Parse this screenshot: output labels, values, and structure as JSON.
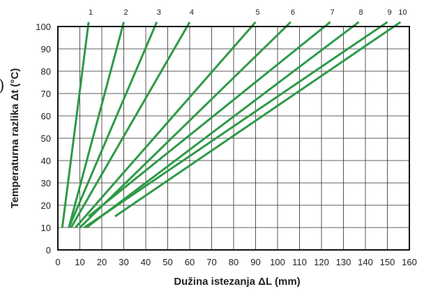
{
  "chart_data": {
    "type": "line",
    "xlabel": "Dužina istezanja ΔL (mm)",
    "ylabel": "Temperaturna razlika Δt  (°C)",
    "xlim": [
      0,
      160
    ],
    "ylim": [
      0,
      100
    ],
    "x_ticks": [
      "0",
      "10",
      "20",
      "30",
      "40",
      "50",
      "60",
      "70",
      "80",
      "90",
      "100",
      "110",
      "120",
      "130",
      "140",
      "150",
      "160"
    ],
    "y_ticks": [
      "0",
      "10",
      "20",
      "30",
      "40",
      "50",
      "60",
      "70",
      "80",
      "90",
      "100"
    ],
    "grid": true,
    "series": [
      {
        "name": "1",
        "x": [
          2,
          14
        ],
        "y": [
          10,
          102
        ]
      },
      {
        "name": "2",
        "x": [
          5,
          30
        ],
        "y": [
          10,
          102
        ]
      },
      {
        "name": "3",
        "x": [
          5,
          45
        ],
        "y": [
          10,
          102
        ]
      },
      {
        "name": "4",
        "x": [
          6,
          60
        ],
        "y": [
          10,
          102
        ]
      },
      {
        "name": "5",
        "x": [
          8,
          90
        ],
        "y": [
          10,
          102
        ]
      },
      {
        "name": "6",
        "x": [
          10,
          106
        ],
        "y": [
          10,
          102
        ]
      },
      {
        "name": "7",
        "x": [
          14,
          124
        ],
        "y": [
          15,
          102
        ]
      },
      {
        "name": "8",
        "x": [
          13,
          137
        ],
        "y": [
          10,
          102
        ]
      },
      {
        "name": "9",
        "x": [
          12,
          150
        ],
        "y": [
          10,
          102
        ]
      },
      {
        "name": "10",
        "x": [
          26,
          156
        ],
        "y": [
          15,
          102
        ]
      }
    ]
  },
  "stray_glyph": ")"
}
